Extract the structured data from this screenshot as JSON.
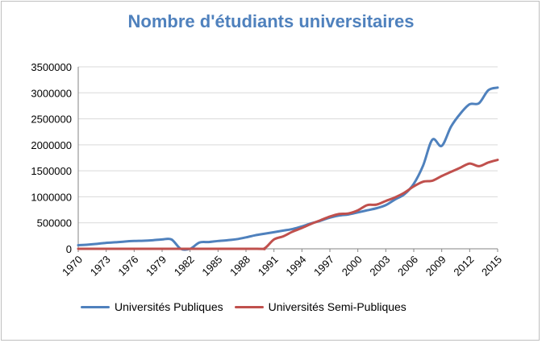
{
  "chart_data": {
    "type": "line",
    "title": "Nombre d'étudiants universitaires",
    "ylim": [
      0,
      3500000
    ],
    "yticks": [
      "0",
      "500000",
      "1000000",
      "1500000",
      "2000000",
      "2500000",
      "3000000",
      "3500000"
    ],
    "xticks": [
      "1970",
      "1973",
      "1976",
      "1979",
      "1982",
      "1985",
      "1988",
      "1991",
      "1994",
      "1997",
      "2000",
      "2003",
      "2006",
      "2009",
      "2012",
      "2015"
    ],
    "grid": "horizontal",
    "legend_position": "bottom",
    "series": [
      {
        "name": "Universités Publiques",
        "color": "#4f81bd",
        "points": [
          [
            1970,
            70000
          ],
          [
            1971,
            80000
          ],
          [
            1972,
            95000
          ],
          [
            1973,
            115000
          ],
          [
            1974,
            125000
          ],
          [
            1975,
            140000
          ],
          [
            1976,
            150000
          ],
          [
            1977,
            155000
          ],
          [
            1978,
            165000
          ],
          [
            1979,
            180000
          ],
          [
            1980,
            180000
          ],
          [
            1981,
            0
          ],
          [
            1982,
            0
          ],
          [
            1983,
            120000
          ],
          [
            1984,
            130000
          ],
          [
            1985,
            150000
          ],
          [
            1986,
            165000
          ],
          [
            1987,
            185000
          ],
          [
            1988,
            220000
          ],
          [
            1989,
            260000
          ],
          [
            1990,
            290000
          ],
          [
            1991,
            320000
          ],
          [
            1992,
            350000
          ],
          [
            1993,
            380000
          ],
          [
            1994,
            430000
          ],
          [
            1995,
            490000
          ],
          [
            1996,
            540000
          ],
          [
            1997,
            600000
          ],
          [
            1998,
            640000
          ],
          [
            1999,
            660000
          ],
          [
            2000,
            700000
          ],
          [
            2001,
            740000
          ],
          [
            2002,
            780000
          ],
          [
            2003,
            840000
          ],
          [
            2004,
            950000
          ],
          [
            2005,
            1050000
          ],
          [
            2006,
            1250000
          ],
          [
            2007,
            1600000
          ],
          [
            2008,
            2100000
          ],
          [
            2009,
            1980000
          ],
          [
            2010,
            2350000
          ],
          [
            2011,
            2600000
          ],
          [
            2012,
            2780000
          ],
          [
            2013,
            2800000
          ],
          [
            2014,
            3050000
          ],
          [
            2015,
            3100000
          ]
        ]
      },
      {
        "name": "Universités Semi-Publiques",
        "color": "#c0504d",
        "points": [
          [
            1970,
            0
          ],
          [
            1980,
            0
          ],
          [
            1989,
            0
          ],
          [
            1990,
            10000
          ],
          [
            1991,
            180000
          ],
          [
            1992,
            240000
          ],
          [
            1993,
            330000
          ],
          [
            1994,
            400000
          ],
          [
            1995,
            480000
          ],
          [
            1996,
            550000
          ],
          [
            1997,
            620000
          ],
          [
            1998,
            670000
          ],
          [
            1999,
            680000
          ],
          [
            2000,
            740000
          ],
          [
            2001,
            840000
          ],
          [
            2002,
            850000
          ],
          [
            2003,
            920000
          ],
          [
            2004,
            990000
          ],
          [
            2005,
            1080000
          ],
          [
            2006,
            1200000
          ],
          [
            2007,
            1290000
          ],
          [
            2008,
            1310000
          ],
          [
            2009,
            1400000
          ],
          [
            2010,
            1480000
          ],
          [
            2011,
            1560000
          ],
          [
            2012,
            1640000
          ],
          [
            2013,
            1590000
          ],
          [
            2014,
            1660000
          ],
          [
            2015,
            1710000
          ]
        ]
      }
    ]
  }
}
